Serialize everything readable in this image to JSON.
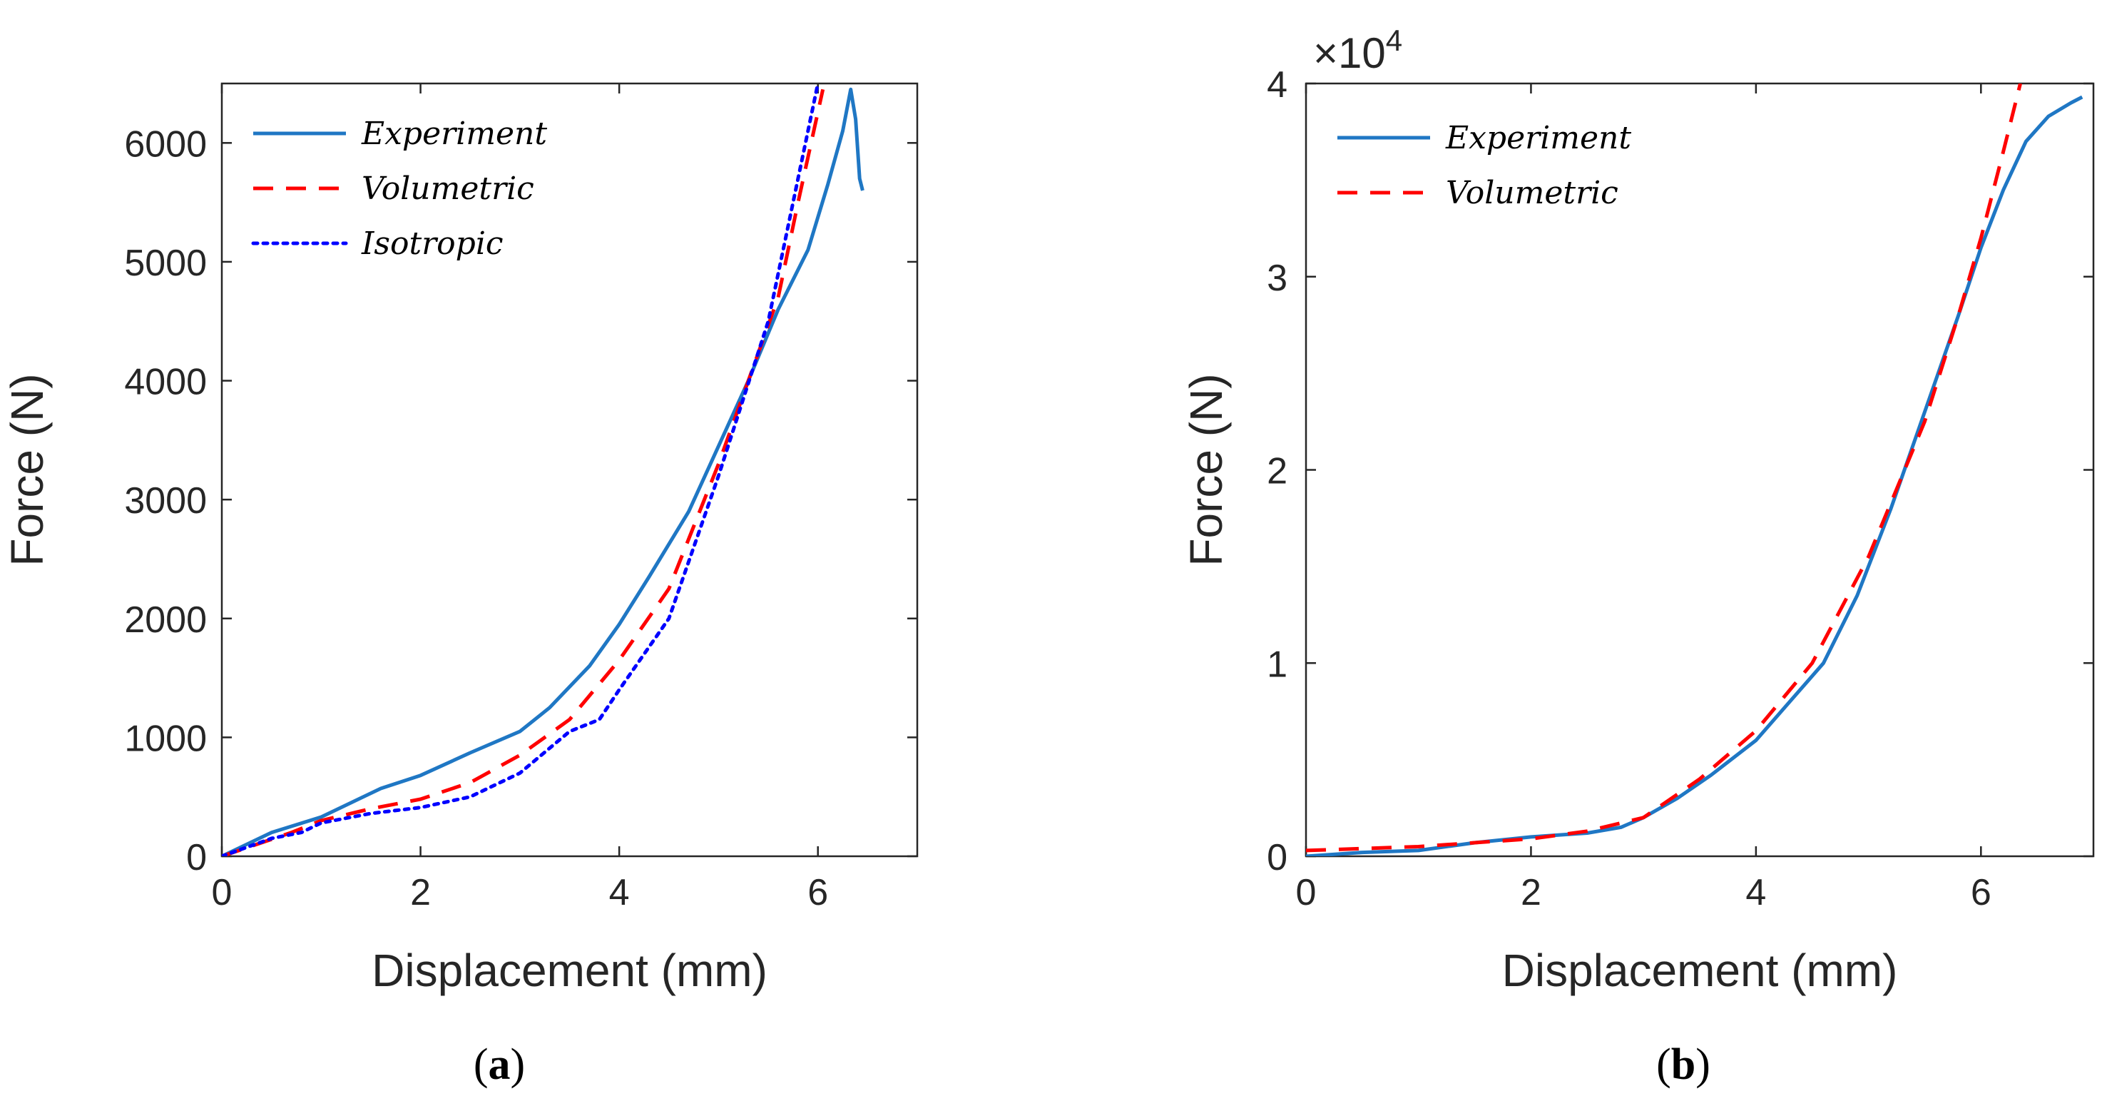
{
  "chart_data": [
    {
      "type": "line",
      "panel_label": "(a)",
      "xlabel": "Displacement (mm)",
      "ylabel": "Force (N)",
      "xlim": [
        0,
        7
      ],
      "ylim": [
        0,
        6500
      ],
      "xticks": [
        "0",
        "2",
        "4",
        "6"
      ],
      "yticks": [
        "0",
        "1000",
        "2000",
        "3000",
        "4000",
        "5000",
        "6000"
      ],
      "legend_position": "top-left",
      "series": [
        {
          "name": "Experiment",
          "color": "#1f77c4",
          "style": "solid",
          "x": [
            0,
            0.5,
            1.0,
            1.3,
            1.6,
            2.0,
            2.5,
            3.0,
            3.3,
            3.7,
            4.0,
            4.3,
            4.7,
            5.0,
            5.3,
            5.6,
            5.9,
            6.1,
            6.25,
            6.33,
            6.38,
            6.42,
            6.45
          ],
          "y": [
            0,
            200,
            330,
            450,
            570,
            680,
            870,
            1050,
            1250,
            1600,
            1950,
            2350,
            2900,
            3450,
            4000,
            4600,
            5100,
            5650,
            6100,
            6450,
            6200,
            5700,
            5600
          ]
        },
        {
          "name": "Volumetric",
          "color": "#ff0000",
          "style": "dashed",
          "x": [
            0,
            0.7,
            1.0,
            1.5,
            2.0,
            2.5,
            3.0,
            3.5,
            4.0,
            4.5,
            5.0,
            5.3,
            5.6,
            5.8,
            6.05
          ],
          "y": [
            0,
            200,
            300,
            400,
            480,
            620,
            850,
            1150,
            1650,
            2250,
            3300,
            4000,
            4700,
            5500,
            6450
          ]
        },
        {
          "name": "Isotropic",
          "color": "#0000ff",
          "style": "dotted",
          "x": [
            0,
            0.5,
            0.8,
            1.0,
            1.5,
            2.0,
            2.5,
            3.0,
            3.5,
            3.8,
            4.0,
            4.5,
            5.0,
            5.5,
            6.0
          ],
          "y": [
            0,
            150,
            200,
            280,
            360,
            410,
            500,
            700,
            1050,
            1150,
            1400,
            2000,
            3200,
            4500,
            6500
          ]
        }
      ]
    },
    {
      "type": "line",
      "panel_label": "(b)",
      "xlabel": "Displacement (mm)",
      "ylabel": "Force (N)",
      "xlim": [
        0,
        7
      ],
      "ylim": [
        0,
        40000
      ],
      "xticks": [
        "0",
        "2",
        "4",
        "6"
      ],
      "yticks": [
        "0",
        "1",
        "2",
        "3",
        "4"
      ],
      "y_multiplier": "×10",
      "y_exponent": "4",
      "legend_position": "top-left",
      "series": [
        {
          "name": "Experiment",
          "color": "#1f77c4",
          "style": "solid",
          "x": [
            0,
            0.5,
            1.0,
            1.5,
            2.0,
            2.5,
            2.8,
            3.0,
            3.3,
            3.6,
            4.0,
            4.3,
            4.6,
            4.9,
            5.2,
            5.5,
            5.8,
            6.0,
            6.2,
            6.4,
            6.6,
            6.8,
            6.9
          ],
          "y": [
            0,
            200,
            300,
            700,
            1000,
            1200,
            1500,
            2000,
            3000,
            4200,
            6000,
            8000,
            10000,
            13500,
            18000,
            23000,
            28000,
            31500,
            34500,
            37000,
            38300,
            39000,
            39300
          ]
        },
        {
          "name": "Volumetric",
          "color": "#ff0000",
          "style": "dashed",
          "x": [
            0,
            0.5,
            1.0,
            1.5,
            2.0,
            2.5,
            3.0,
            3.5,
            4.0,
            4.5,
            5.0,
            5.5,
            5.8,
            6.0,
            6.2,
            6.35
          ],
          "y": [
            300,
            400,
            500,
            700,
            900,
            1300,
            2000,
            4000,
            6500,
            10000,
            15500,
            22500,
            28000,
            32000,
            36500,
            40000
          ]
        }
      ]
    }
  ]
}
